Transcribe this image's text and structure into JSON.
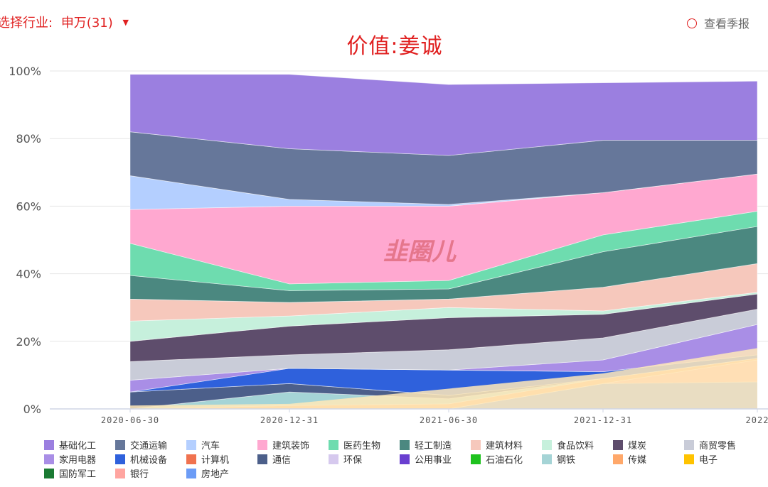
{
  "header": {
    "industry_label": "选择行业:",
    "industry_value": "申万(31)",
    "report_toggle": "查看季报",
    "title": "价值:姜诚",
    "watermark": "韭圈儿"
  },
  "colors": {
    "accent": "#e02020"
  },
  "chart_data": {
    "type": "area",
    "stacked": true,
    "x": [
      "2020-06-30",
      "2020-12-31",
      "2021-06-30",
      "2021-12-31",
      "2022"
    ],
    "ylim": [
      0,
      100
    ],
    "yticks": [
      "0%",
      "20%",
      "40%",
      "60%",
      "80%",
      "100%"
    ],
    "grid": true,
    "legend_position": "bottom",
    "series": [
      {
        "name": "基础化工",
        "color": "#9b7fe0",
        "values": [
          17,
          22,
          21,
          17,
          17.5
        ]
      },
      {
        "name": "交通运输",
        "color": "#66779a",
        "values": [
          13,
          15,
          14.5,
          15.5,
          10
        ]
      },
      {
        "name": "汽车",
        "color": "#b4cfff",
        "values": [
          10,
          2,
          0.5,
          0,
          0
        ]
      },
      {
        "name": "建筑装饰",
        "color": "#ffa8d0",
        "values": [
          10,
          23,
          22,
          12.5,
          11
        ]
      },
      {
        "name": "医药生物",
        "color": "#6edcaf",
        "values": [
          9.5,
          2,
          2.5,
          5,
          4.5
        ]
      },
      {
        "name": "轻工制造",
        "color": "#4b8880",
        "values": [
          7,
          3.5,
          3,
          10.5,
          11
        ]
      },
      {
        "name": "建筑材料",
        "color": "#f6c8bc",
        "values": [
          6.5,
          4,
          2.5,
          7,
          8.5
        ]
      },
      {
        "name": "食品饮料",
        "color": "#c6f0dc",
        "values": [
          6,
          3,
          3,
          1,
          0.5
        ]
      },
      {
        "name": "煤炭",
        "color": "#5e4d6c",
        "values": [
          6,
          8.5,
          9.5,
          7,
          4.5
        ]
      },
      {
        "name": "商贸零售",
        "color": "#c9ccd8",
        "values": [
          5.5,
          4,
          6,
          6.5,
          4.5
        ]
      },
      {
        "name": "家用电器",
        "color": "#a98ee6",
        "values": [
          3.5,
          0,
          0,
          3.5,
          9
        ]
      },
      {
        "name": "机械设备",
        "color": "#2f61dc",
        "values": [
          0,
          4.5,
          7.5,
          2,
          1
        ]
      },
      {
        "name": "计算机",
        "color": "#f0724f",
        "values": [
          0,
          0,
          0,
          0,
          0
        ]
      },
      {
        "name": "通信",
        "color": "#4c5f8a",
        "values": [
          5,
          2.5,
          1,
          0,
          0
        ]
      },
      {
        "name": "环保",
        "color": "#d6c9ee",
        "values": [
          0,
          0,
          0,
          0,
          0
        ]
      },
      {
        "name": "公用事业",
        "color": "#6a3fd0",
        "values": [
          0,
          0,
          0,
          0,
          0
        ]
      },
      {
        "name": "石油石化",
        "color": "#1ec21e",
        "values": [
          0,
          0,
          0,
          0,
          0
        ]
      },
      {
        "name": "钢铁",
        "color": "#a5d4d6",
        "values": [
          0,
          4,
          1.5,
          0,
          0
        ]
      },
      {
        "name": "传媒",
        "color": "#ffa86a",
        "values": [
          0,
          1,
          1.5,
          1.5,
          0.5
        ]
      },
      {
        "name": "电子",
        "color": "#ffc300",
        "values": [
          0,
          0,
          0,
          0,
          0
        ]
      },
      {
        "name": "国防军工",
        "color": "#1a7a33",
        "values": [
          0,
          0,
          0,
          0,
          0
        ]
      },
      {
        "name": "银行",
        "color": "#ffa5a0",
        "values": [
          0,
          0,
          0,
          0,
          6.5
        ]
      },
      {
        "name": "房地产",
        "color": "#6c9cf6",
        "values": [
          0,
          0,
          0,
          7.5,
          8
        ]
      }
    ],
    "overlay": {
      "name": "",
      "color": "#ffe9b8",
      "values": [
        1,
        1.5,
        6,
        10.5,
        18
      ]
    }
  }
}
